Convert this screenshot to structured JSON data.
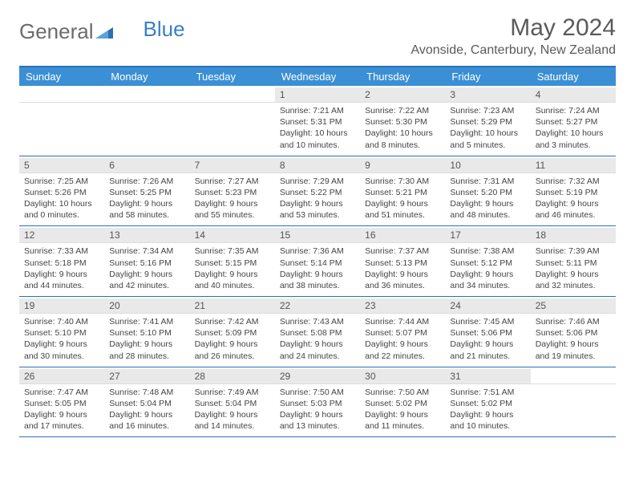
{
  "logo": {
    "part1": "General",
    "part2": "Blue"
  },
  "title": "May 2024",
  "location": "Avonside, Canterbury, New Zealand",
  "style": {
    "header_bg": "#3b8fd4",
    "header_fg": "#ffffff",
    "border_color": "#2e6fb4",
    "daynum_bg": "#e9e9e9",
    "body_bg": "#ffffff",
    "text_color": "#444444",
    "font_size_day_header": 13,
    "font_size_cell": 10.5,
    "columns": 7
  },
  "day_headers": [
    "Sunday",
    "Monday",
    "Tuesday",
    "Wednesday",
    "Thursday",
    "Friday",
    "Saturday"
  ],
  "weeks": [
    [
      {
        "blank": true
      },
      {
        "blank": true
      },
      {
        "blank": true
      },
      {
        "n": "1",
        "sr": "7:21 AM",
        "ss": "5:31 PM",
        "dl": "10 hours and 10 minutes."
      },
      {
        "n": "2",
        "sr": "7:22 AM",
        "ss": "5:30 PM",
        "dl": "10 hours and 8 minutes."
      },
      {
        "n": "3",
        "sr": "7:23 AM",
        "ss": "5:29 PM",
        "dl": "10 hours and 5 minutes."
      },
      {
        "n": "4",
        "sr": "7:24 AM",
        "ss": "5:27 PM",
        "dl": "10 hours and 3 minutes."
      }
    ],
    [
      {
        "n": "5",
        "sr": "7:25 AM",
        "ss": "5:26 PM",
        "dl": "10 hours and 0 minutes."
      },
      {
        "n": "6",
        "sr": "7:26 AM",
        "ss": "5:25 PM",
        "dl": "9 hours and 58 minutes."
      },
      {
        "n": "7",
        "sr": "7:27 AM",
        "ss": "5:23 PM",
        "dl": "9 hours and 55 minutes."
      },
      {
        "n": "8",
        "sr": "7:29 AM",
        "ss": "5:22 PM",
        "dl": "9 hours and 53 minutes."
      },
      {
        "n": "9",
        "sr": "7:30 AM",
        "ss": "5:21 PM",
        "dl": "9 hours and 51 minutes."
      },
      {
        "n": "10",
        "sr": "7:31 AM",
        "ss": "5:20 PM",
        "dl": "9 hours and 48 minutes."
      },
      {
        "n": "11",
        "sr": "7:32 AM",
        "ss": "5:19 PM",
        "dl": "9 hours and 46 minutes."
      }
    ],
    [
      {
        "n": "12",
        "sr": "7:33 AM",
        "ss": "5:18 PM",
        "dl": "9 hours and 44 minutes."
      },
      {
        "n": "13",
        "sr": "7:34 AM",
        "ss": "5:16 PM",
        "dl": "9 hours and 42 minutes."
      },
      {
        "n": "14",
        "sr": "7:35 AM",
        "ss": "5:15 PM",
        "dl": "9 hours and 40 minutes."
      },
      {
        "n": "15",
        "sr": "7:36 AM",
        "ss": "5:14 PM",
        "dl": "9 hours and 38 minutes."
      },
      {
        "n": "16",
        "sr": "7:37 AM",
        "ss": "5:13 PM",
        "dl": "9 hours and 36 minutes."
      },
      {
        "n": "17",
        "sr": "7:38 AM",
        "ss": "5:12 PM",
        "dl": "9 hours and 34 minutes."
      },
      {
        "n": "18",
        "sr": "7:39 AM",
        "ss": "5:11 PM",
        "dl": "9 hours and 32 minutes."
      }
    ],
    [
      {
        "n": "19",
        "sr": "7:40 AM",
        "ss": "5:10 PM",
        "dl": "9 hours and 30 minutes."
      },
      {
        "n": "20",
        "sr": "7:41 AM",
        "ss": "5:10 PM",
        "dl": "9 hours and 28 minutes."
      },
      {
        "n": "21",
        "sr": "7:42 AM",
        "ss": "5:09 PM",
        "dl": "9 hours and 26 minutes."
      },
      {
        "n": "22",
        "sr": "7:43 AM",
        "ss": "5:08 PM",
        "dl": "9 hours and 24 minutes."
      },
      {
        "n": "23",
        "sr": "7:44 AM",
        "ss": "5:07 PM",
        "dl": "9 hours and 22 minutes."
      },
      {
        "n": "24",
        "sr": "7:45 AM",
        "ss": "5:06 PM",
        "dl": "9 hours and 21 minutes."
      },
      {
        "n": "25",
        "sr": "7:46 AM",
        "ss": "5:06 PM",
        "dl": "9 hours and 19 minutes."
      }
    ],
    [
      {
        "n": "26",
        "sr": "7:47 AM",
        "ss": "5:05 PM",
        "dl": "9 hours and 17 minutes."
      },
      {
        "n": "27",
        "sr": "7:48 AM",
        "ss": "5:04 PM",
        "dl": "9 hours and 16 minutes."
      },
      {
        "n": "28",
        "sr": "7:49 AM",
        "ss": "5:04 PM",
        "dl": "9 hours and 14 minutes."
      },
      {
        "n": "29",
        "sr": "7:50 AM",
        "ss": "5:03 PM",
        "dl": "9 hours and 13 minutes."
      },
      {
        "n": "30",
        "sr": "7:50 AM",
        "ss": "5:02 PM",
        "dl": "9 hours and 11 minutes."
      },
      {
        "n": "31",
        "sr": "7:51 AM",
        "ss": "5:02 PM",
        "dl": "9 hours and 10 minutes."
      },
      {
        "blank": true
      }
    ]
  ],
  "labels": {
    "sunrise": "Sunrise: ",
    "sunset": "Sunset: ",
    "daylight": "Daylight: "
  }
}
